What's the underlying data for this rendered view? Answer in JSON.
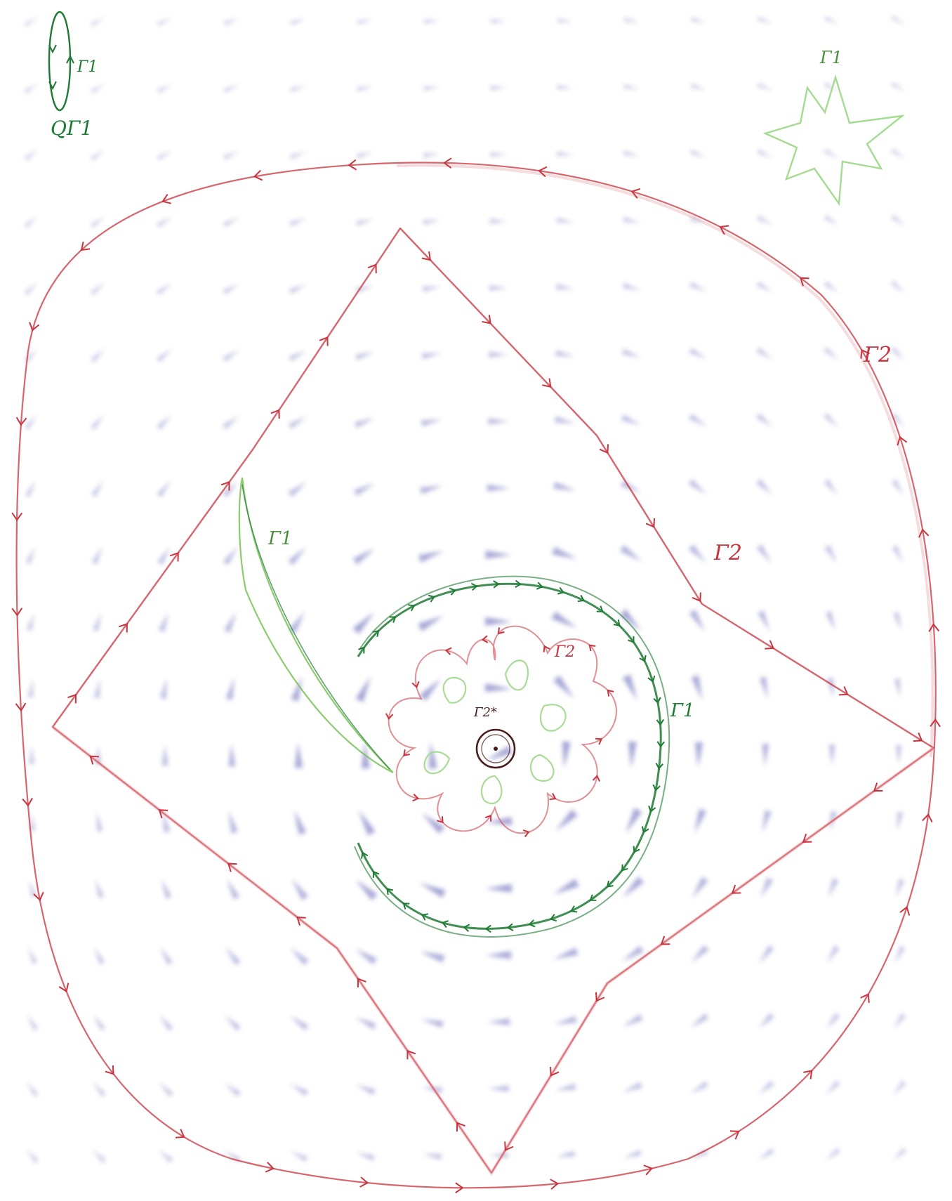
{
  "labels": {
    "legend_gamma": "Γ1",
    "legend_q": "QΓ1",
    "star_gamma": "Γ1",
    "outer_gamma": "Γ2",
    "diamond_gamma": "Γ2",
    "flower_gamma": "Γ2",
    "spiral_gamma_left": "Γ1",
    "spiral_gamma_right": "Γ1",
    "center_gamma": "Γ2*"
  },
  "colors": {
    "field": "#5b5bb4",
    "red_path": "#c8333e",
    "red_light": "#e79aa0",
    "green_dark": "#1f7a34",
    "green_light": "#9fd98a",
    "center": "#4a1d1d"
  },
  "field": {
    "kind": "rotational vector field around a central point"
  }
}
